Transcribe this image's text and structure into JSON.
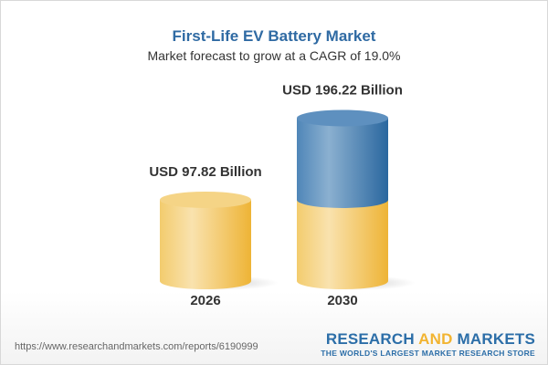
{
  "header": {
    "title": "First-Life EV Battery Market",
    "subtitle": "Market forecast to grow at a CAGR of 19.0%"
  },
  "chart_data": {
    "type": "bar",
    "style": "3d-cylinder",
    "categories": [
      "2026",
      "2030"
    ],
    "values": [
      97.82,
      196.22
    ],
    "data_labels": [
      "USD 97.82 Billion",
      "USD 196.22 Billion"
    ],
    "unit": "USD Billion",
    "colors": {
      "base": "#f2c45a",
      "growth": "#3f7db3"
    },
    "grid": false
  },
  "footer": {
    "url": "https://www.researchandmarkets.com/reports/6190999",
    "logo_research": "RESEARCH",
    "logo_and": "AND",
    "logo_markets": "MARKETS",
    "logo_tagline": "THE WORLD'S LARGEST MARKET RESEARCH STORE"
  }
}
